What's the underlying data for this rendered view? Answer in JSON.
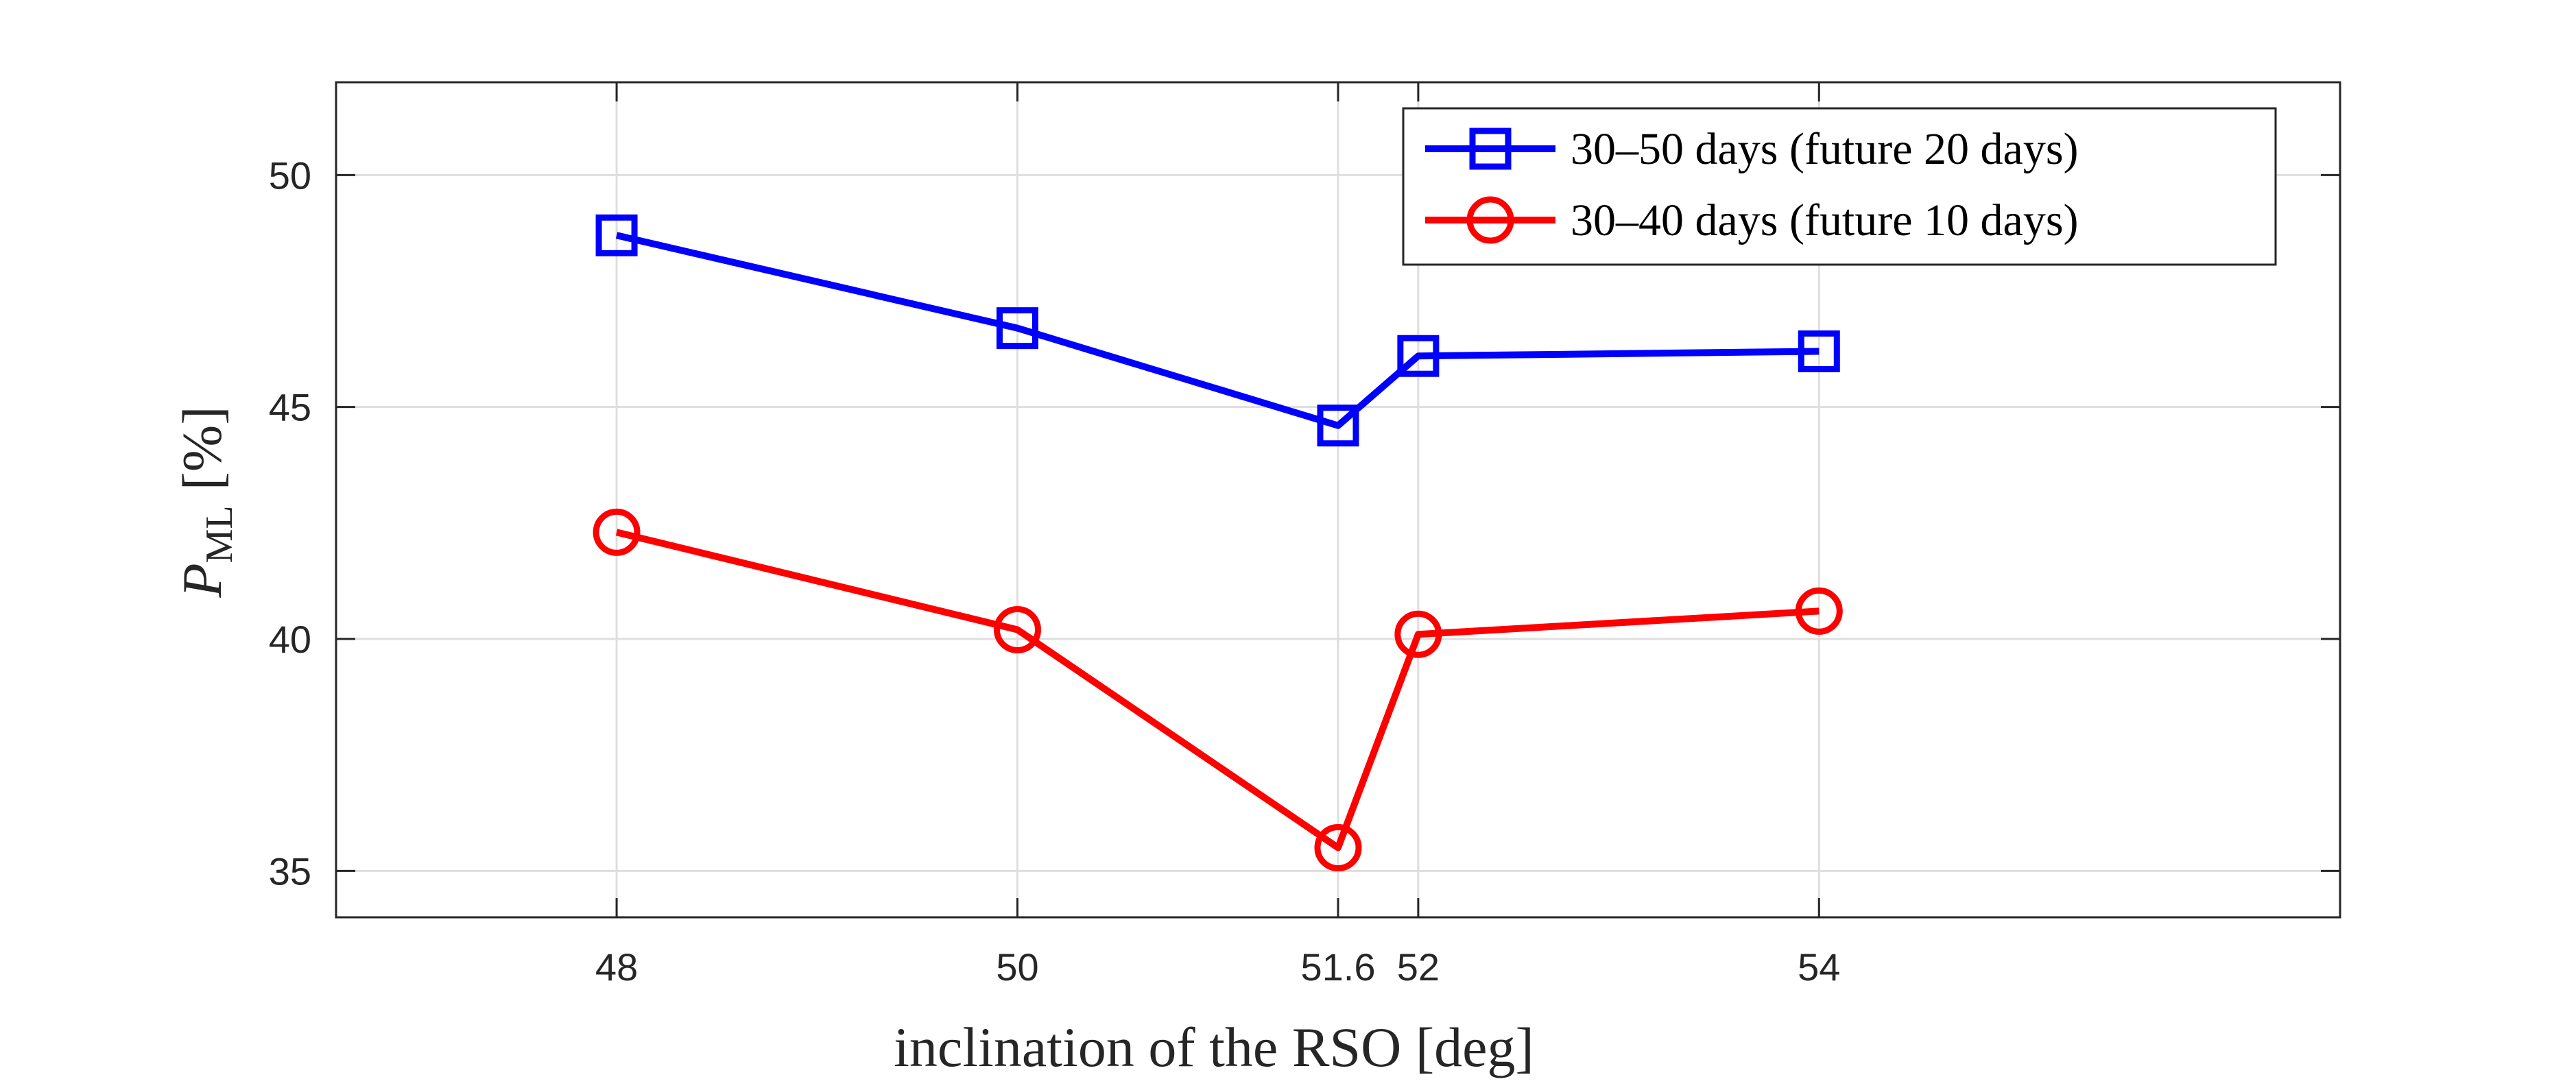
{
  "chart_data": {
    "type": "line",
    "title": "",
    "xlabel": "inclination of the RSO [deg]",
    "ylabel": {
      "symbol": "P",
      "subscript": "ML",
      "unit": "[%]"
    },
    "xlim": [
      46.6,
      56.6
    ],
    "ylim": [
      34,
      52
    ],
    "xticks": [
      48,
      50,
      51.6,
      52,
      54
    ],
    "xtick_labels": [
      "48",
      "50",
      "51.6",
      "52",
      "54"
    ],
    "yticks": [
      35,
      40,
      45,
      50
    ],
    "ytick_labels": [
      "35",
      "40",
      "45",
      "50"
    ],
    "grid": true,
    "legend_position": "top-right",
    "x": [
      48,
      50,
      51.6,
      52,
      54
    ],
    "series": [
      {
        "name": "30–50 days (future 20 days)",
        "values": [
          48.7,
          46.7,
          44.6,
          46.1,
          46.2
        ],
        "color": "#0000ff",
        "marker": "square"
      },
      {
        "name": "30–40 days (future 10 days)",
        "values": [
          42.3,
          40.2,
          35.5,
          40.1,
          40.6
        ],
        "color": "#ff0000",
        "marker": "circle"
      }
    ]
  }
}
